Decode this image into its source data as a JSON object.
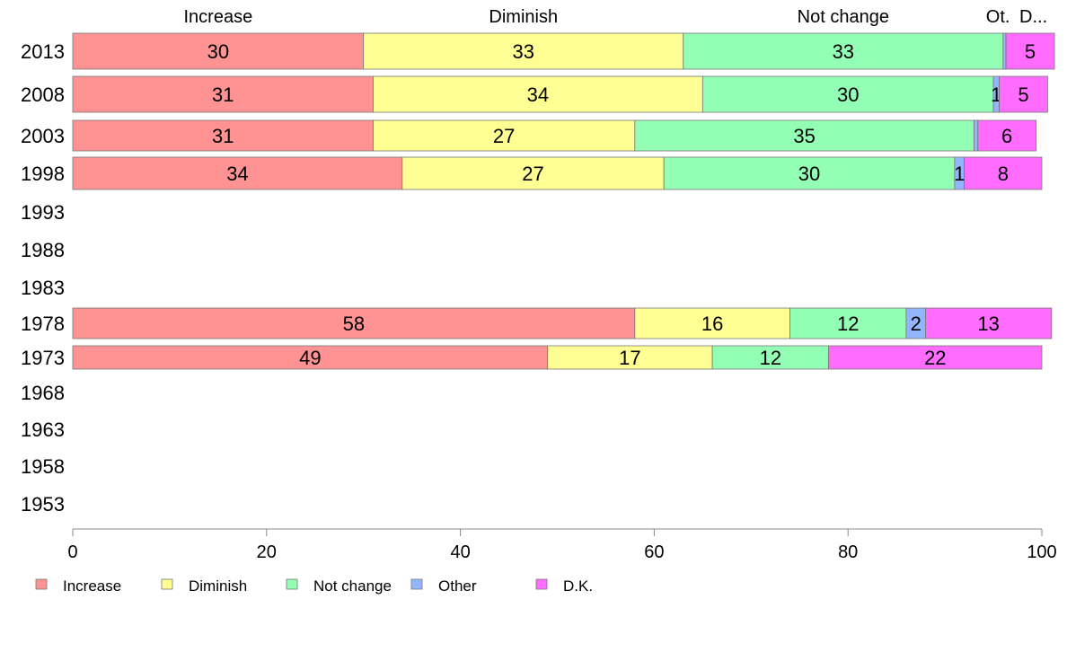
{
  "chart_data": {
    "type": "bar",
    "orientation": "horizontal",
    "stacked": true,
    "categories": [
      "2013",
      "2008",
      "2003",
      "1998",
      "1993",
      "1988",
      "1983",
      "1978",
      "1973",
      "1968",
      "1963",
      "1958",
      "1953"
    ],
    "series": [
      {
        "name": "Increase",
        "color": "#ff9393",
        "values": [
          30,
          31,
          31,
          34,
          null,
          null,
          null,
          58,
          49,
          null,
          null,
          null,
          null
        ]
      },
      {
        "name": "Diminish",
        "color": "#ffff93",
        "values": [
          33,
          34,
          27,
          27,
          null,
          null,
          null,
          16,
          17,
          null,
          null,
          null,
          null
        ]
      },
      {
        "name": "Not change",
        "color": "#93ffb4",
        "values": [
          33,
          30,
          35,
          30,
          null,
          null,
          null,
          12,
          12,
          null,
          null,
          null,
          null
        ]
      },
      {
        "name": "Other",
        "color": "#93b4ff",
        "values": [
          0.3,
          0.6,
          0.4,
          1,
          null,
          null,
          null,
          2,
          0,
          null,
          null,
          null,
          null
        ]
      },
      {
        "name": "D.K.",
        "color": "#ff6cff",
        "values": [
          5,
          5,
          6,
          8,
          null,
          null,
          null,
          13,
          22,
          null,
          null,
          null,
          null
        ]
      }
    ],
    "data_labels": [
      [
        "30",
        "33",
        "33",
        "",
        "5"
      ],
      [
        "31",
        "34",
        "30",
        "1",
        "5"
      ],
      [
        "31",
        "27",
        "35",
        "",
        "6"
      ],
      [
        "34",
        "27",
        "30",
        "1",
        "8"
      ],
      [],
      [],
      [],
      [
        "58",
        "16",
        "12",
        "2",
        "13"
      ],
      [
        "49",
        "17",
        "12",
        "",
        "22"
      ],
      [],
      [],
      [],
      []
    ],
    "top_labels": [
      "Increase",
      "Diminish",
      "Not change",
      "Ot.",
      "D..."
    ],
    "xlim": [
      0,
      100
    ],
    "xticks": [
      "0",
      "20",
      "40",
      "60",
      "80",
      "100"
    ],
    "grid": false,
    "legend_position": "bottom"
  }
}
